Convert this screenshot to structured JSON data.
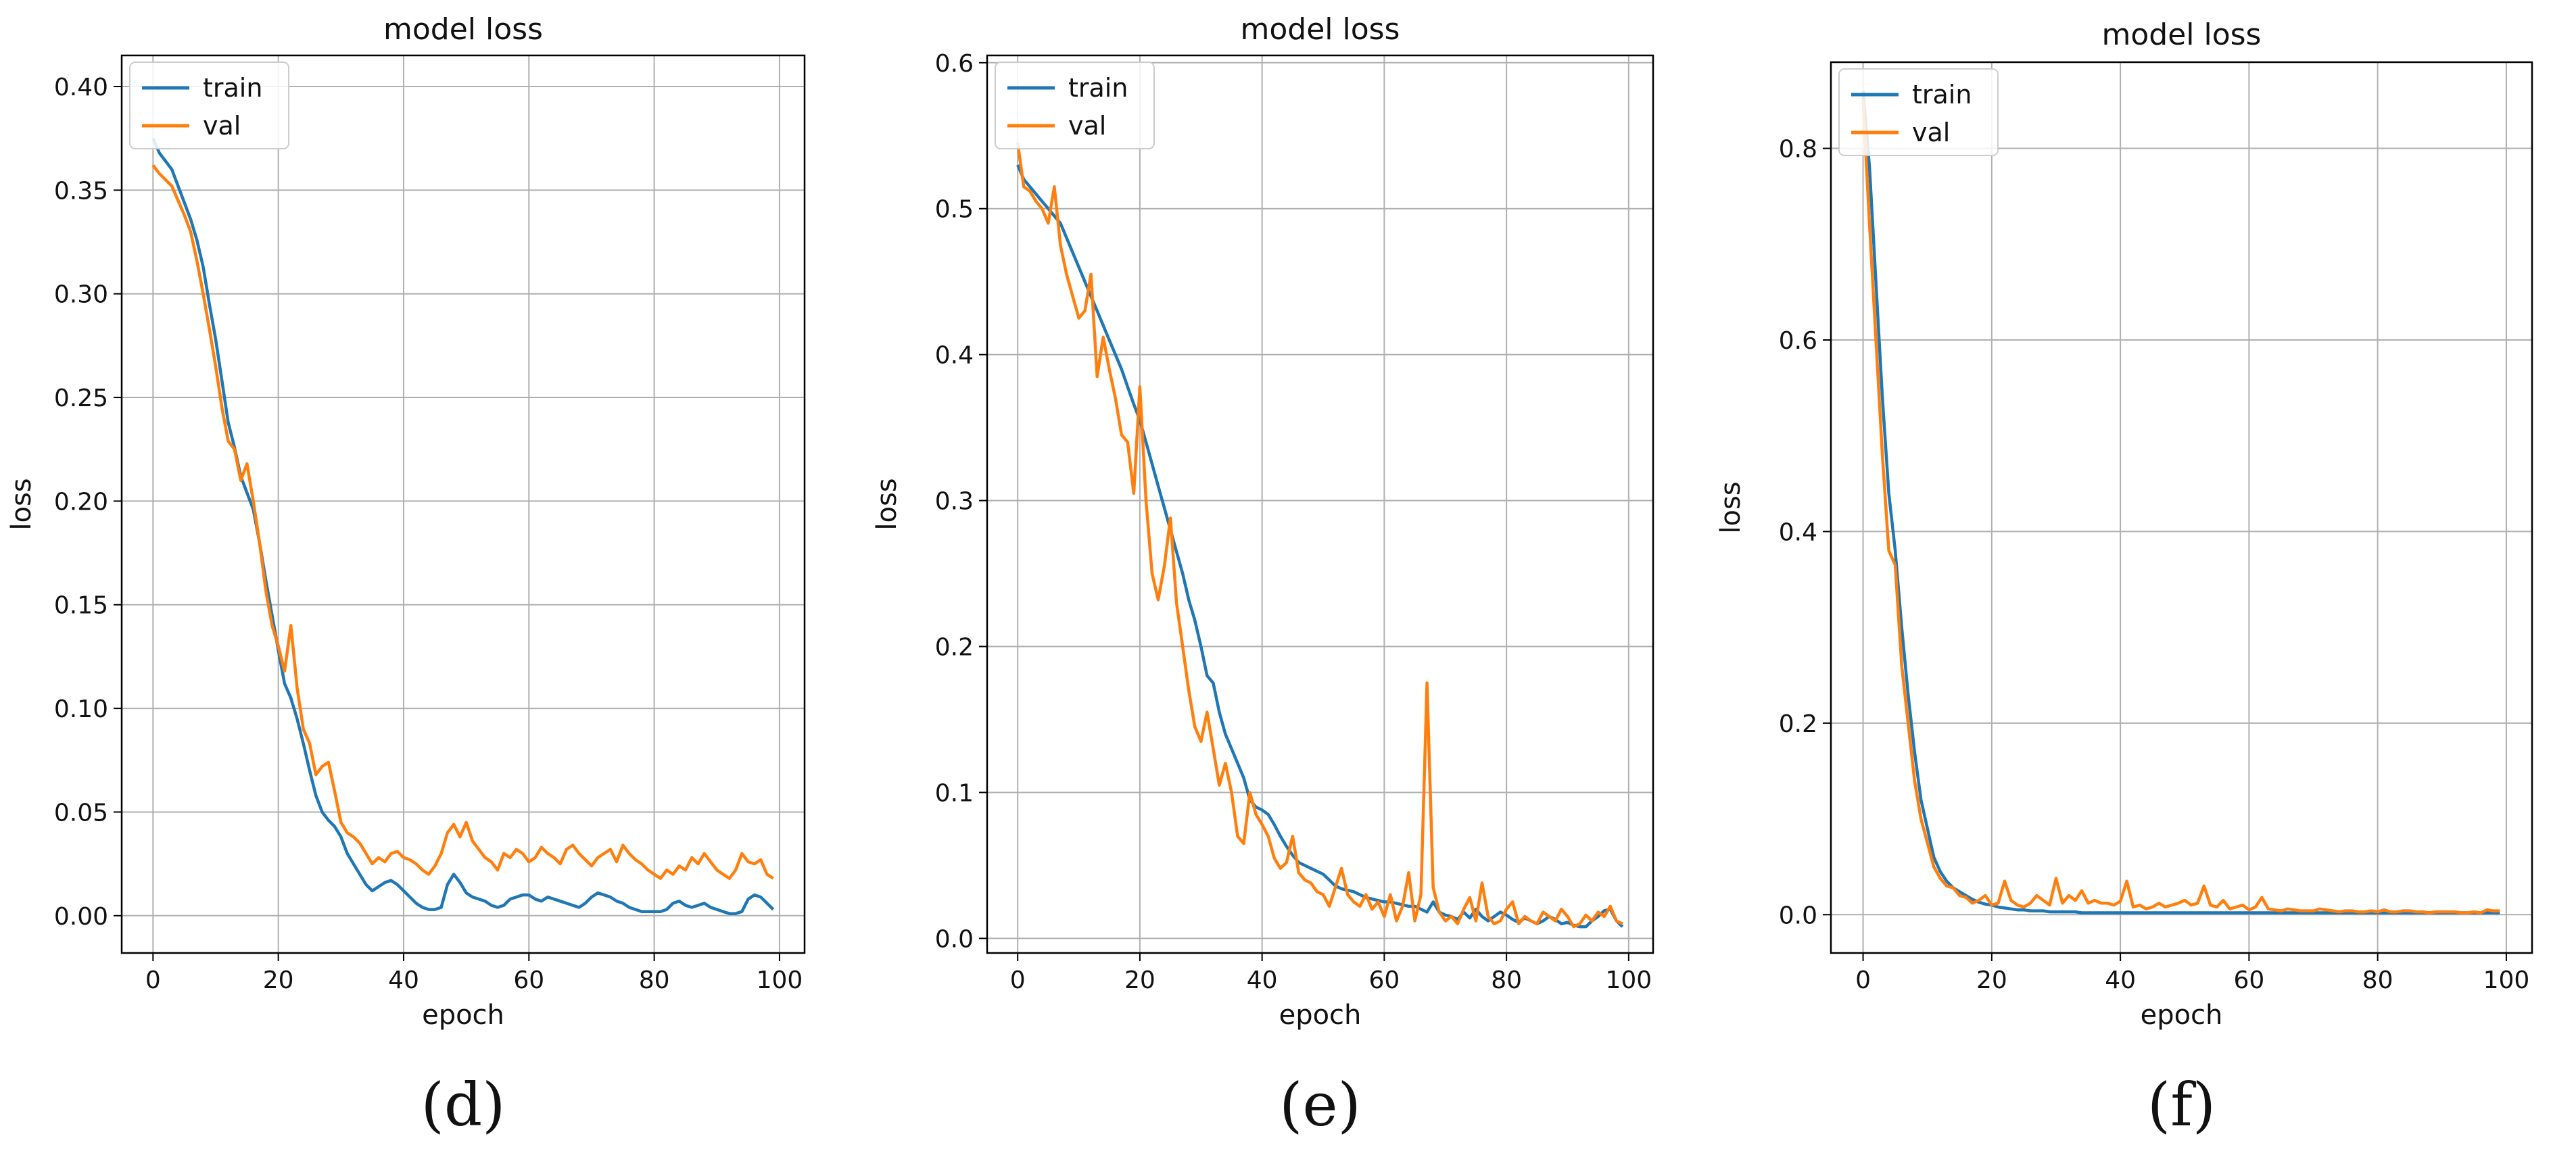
{
  "colors": {
    "train": "#1f77b4",
    "val": "#ff7f0e",
    "grid": "#b0b0b0",
    "axis": "#000000"
  },
  "chart_data": [
    {
      "type": "line",
      "title": "model loss",
      "xlabel": "epoch",
      "ylabel": "loss",
      "caption": "(d)",
      "xlim": [
        -5,
        104
      ],
      "ylim": [
        -0.018,
        0.415
      ],
      "xticks": [
        0,
        20,
        40,
        60,
        80,
        100
      ],
      "xtick_labels": [
        "0",
        "20",
        "40",
        "60",
        "80",
        "100"
      ],
      "yticks": [
        0.0,
        0.05,
        0.1,
        0.15,
        0.2,
        0.25,
        0.3,
        0.35,
        0.4
      ],
      "ytick_labels": [
        "0.00",
        "0.05",
        "0.10",
        "0.15",
        "0.20",
        "0.25",
        "0.30",
        "0.35",
        "0.40"
      ],
      "grid": true,
      "legend": "upper-left",
      "series": [
        {
          "name": "train",
          "x_start": 0,
          "x_step": 1,
          "values": [
            0.375,
            0.368,
            0.364,
            0.36,
            0.352,
            0.344,
            0.336,
            0.326,
            0.313,
            0.295,
            0.278,
            0.258,
            0.238,
            0.226,
            0.212,
            0.204,
            0.196,
            0.18,
            0.162,
            0.145,
            0.128,
            0.112,
            0.105,
            0.095,
            0.083,
            0.07,
            0.058,
            0.05,
            0.046,
            0.043,
            0.038,
            0.03,
            0.025,
            0.02,
            0.015,
            0.012,
            0.014,
            0.016,
            0.017,
            0.015,
            0.012,
            0.009,
            0.006,
            0.004,
            0.003,
            0.003,
            0.004,
            0.015,
            0.02,
            0.016,
            0.011,
            0.009,
            0.008,
            0.007,
            0.005,
            0.004,
            0.005,
            0.008,
            0.009,
            0.01,
            0.01,
            0.008,
            0.007,
            0.009,
            0.008,
            0.007,
            0.006,
            0.005,
            0.004,
            0.006,
            0.009,
            0.011,
            0.01,
            0.009,
            0.007,
            0.006,
            0.004,
            0.003,
            0.002,
            0.002,
            0.002,
            0.002,
            0.003,
            0.006,
            0.007,
            0.005,
            0.004,
            0.005,
            0.006,
            0.004,
            0.003,
            0.002,
            0.001,
            0.001,
            0.002,
            0.008,
            0.01,
            0.009,
            0.006,
            0.003
          ]
        },
        {
          "name": "val",
          "x_start": 0,
          "x_step": 1,
          "values": [
            0.362,
            0.358,
            0.355,
            0.352,
            0.345,
            0.338,
            0.33,
            0.316,
            0.3,
            0.283,
            0.265,
            0.245,
            0.229,
            0.225,
            0.21,
            0.218,
            0.2,
            0.18,
            0.157,
            0.14,
            0.13,
            0.118,
            0.14,
            0.11,
            0.09,
            0.083,
            0.068,
            0.072,
            0.074,
            0.06,
            0.045,
            0.04,
            0.038,
            0.035,
            0.03,
            0.025,
            0.028,
            0.026,
            0.03,
            0.031,
            0.028,
            0.027,
            0.025,
            0.022,
            0.02,
            0.024,
            0.03,
            0.04,
            0.044,
            0.038,
            0.045,
            0.036,
            0.032,
            0.028,
            0.026,
            0.022,
            0.03,
            0.028,
            0.032,
            0.03,
            0.026,
            0.028,
            0.033,
            0.03,
            0.028,
            0.025,
            0.032,
            0.034,
            0.03,
            0.027,
            0.024,
            0.028,
            0.03,
            0.032,
            0.026,
            0.034,
            0.03,
            0.027,
            0.025,
            0.022,
            0.02,
            0.018,
            0.022,
            0.02,
            0.024,
            0.022,
            0.028,
            0.025,
            0.03,
            0.026,
            0.022,
            0.02,
            0.018,
            0.022,
            0.03,
            0.026,
            0.025,
            0.027,
            0.02,
            0.018
          ]
        }
      ]
    },
    {
      "type": "line",
      "title": "model loss",
      "xlabel": "epoch",
      "ylabel": "loss",
      "caption": "(e)",
      "xlim": [
        -5,
        104
      ],
      "ylim": [
        -0.01,
        0.605
      ],
      "xticks": [
        0,
        20,
        40,
        60,
        80,
        100
      ],
      "xtick_labels": [
        "0",
        "20",
        "40",
        "60",
        "80",
        "100"
      ],
      "yticks": [
        0.0,
        0.1,
        0.2,
        0.3,
        0.4,
        0.5,
        0.6
      ],
      "ytick_labels": [
        "0.0",
        "0.1",
        "0.2",
        "0.3",
        "0.4",
        "0.5",
        "0.6"
      ],
      "grid": true,
      "legend": "upper-left",
      "series": [
        {
          "name": "train",
          "x_start": 0,
          "x_step": 1,
          "values": [
            0.53,
            0.52,
            0.515,
            0.51,
            0.505,
            0.5,
            0.495,
            0.49,
            0.48,
            0.47,
            0.46,
            0.45,
            0.44,
            0.43,
            0.42,
            0.41,
            0.4,
            0.39,
            0.378,
            0.366,
            0.355,
            0.34,
            0.325,
            0.31,
            0.295,
            0.28,
            0.265,
            0.25,
            0.232,
            0.218,
            0.2,
            0.18,
            0.175,
            0.155,
            0.14,
            0.13,
            0.12,
            0.11,
            0.095,
            0.09,
            0.088,
            0.085,
            0.078,
            0.07,
            0.063,
            0.057,
            0.052,
            0.05,
            0.048,
            0.046,
            0.044,
            0.04,
            0.036,
            0.034,
            0.033,
            0.032,
            0.03,
            0.028,
            0.027,
            0.026,
            0.025,
            0.025,
            0.024,
            0.023,
            0.022,
            0.022,
            0.02,
            0.018,
            0.025,
            0.018,
            0.016,
            0.015,
            0.013,
            0.018,
            0.014,
            0.02,
            0.015,
            0.012,
            0.015,
            0.018,
            0.016,
            0.013,
            0.011,
            0.014,
            0.012,
            0.01,
            0.012,
            0.015,
            0.013,
            0.01,
            0.011,
            0.009,
            0.008,
            0.008,
            0.012,
            0.015,
            0.019,
            0.02,
            0.012,
            0.008
          ]
        },
        {
          "name": "val",
          "x_start": 0,
          "x_step": 1,
          "values": [
            0.545,
            0.515,
            0.512,
            0.505,
            0.5,
            0.49,
            0.515,
            0.475,
            0.455,
            0.44,
            0.425,
            0.43,
            0.455,
            0.385,
            0.412,
            0.39,
            0.37,
            0.345,
            0.34,
            0.305,
            0.378,
            0.3,
            0.25,
            0.232,
            0.255,
            0.288,
            0.23,
            0.2,
            0.17,
            0.145,
            0.135,
            0.155,
            0.13,
            0.105,
            0.12,
            0.1,
            0.07,
            0.065,
            0.1,
            0.085,
            0.078,
            0.07,
            0.055,
            0.048,
            0.052,
            0.07,
            0.045,
            0.04,
            0.038,
            0.032,
            0.03,
            0.022,
            0.035,
            0.048,
            0.03,
            0.025,
            0.022,
            0.03,
            0.02,
            0.025,
            0.015,
            0.03,
            0.012,
            0.022,
            0.045,
            0.012,
            0.03,
            0.175,
            0.035,
            0.018,
            0.012,
            0.015,
            0.01,
            0.02,
            0.028,
            0.012,
            0.038,
            0.015,
            0.01,
            0.012,
            0.02,
            0.025,
            0.01,
            0.015,
            0.012,
            0.01,
            0.018,
            0.015,
            0.012,
            0.02,
            0.015,
            0.008,
            0.01,
            0.016,
            0.012,
            0.018,
            0.015,
            0.022,
            0.012,
            0.01
          ]
        }
      ]
    },
    {
      "type": "line",
      "title": "model loss",
      "xlabel": "epoch",
      "ylabel": "loss",
      "caption": "(f)",
      "xlim": [
        -5,
        104
      ],
      "ylim": [
        -0.04,
        0.89
      ],
      "xticks": [
        0,
        20,
        40,
        60,
        80,
        100
      ],
      "xtick_labels": [
        "0",
        "20",
        "40",
        "60",
        "80",
        "100"
      ],
      "yticks": [
        0.0,
        0.2,
        0.4,
        0.6,
        0.8
      ],
      "ytick_labels": [
        "0.0",
        "0.2",
        "0.4",
        "0.6",
        "0.8"
      ],
      "grid": true,
      "legend": "upper-left",
      "series": [
        {
          "name": "train",
          "x_start": 0,
          "x_step": 1,
          "values": [
            0.86,
            0.78,
            0.66,
            0.54,
            0.44,
            0.38,
            0.3,
            0.23,
            0.17,
            0.12,
            0.09,
            0.06,
            0.045,
            0.035,
            0.028,
            0.024,
            0.02,
            0.016,
            0.013,
            0.011,
            0.01,
            0.008,
            0.007,
            0.006,
            0.005,
            0.005,
            0.004,
            0.004,
            0.004,
            0.003,
            0.003,
            0.003,
            0.003,
            0.003,
            0.002,
            0.002,
            0.002,
            0.002,
            0.002,
            0.002,
            0.002,
            0.002,
            0.002,
            0.002,
            0.002,
            0.002,
            0.002,
            0.002,
            0.002,
            0.002,
            0.002,
            0.002,
            0.002,
            0.002,
            0.002,
            0.002,
            0.002,
            0.002,
            0.002,
            0.002,
            0.002,
            0.002,
            0.002,
            0.002,
            0.002,
            0.002,
            0.002,
            0.002,
            0.002,
            0.002,
            0.002,
            0.002,
            0.002,
            0.002,
            0.002,
            0.002,
            0.002,
            0.002,
            0.002,
            0.002,
            0.002,
            0.002,
            0.002,
            0.002,
            0.002,
            0.002,
            0.002,
            0.002,
            0.002,
            0.002,
            0.002,
            0.002,
            0.002,
            0.002,
            0.002,
            0.002,
            0.002,
            0.002,
            0.002,
            0.002
          ]
        },
        {
          "name": "val",
          "x_start": 0,
          "x_step": 1,
          "values": [
            0.85,
            0.72,
            0.6,
            0.48,
            0.38,
            0.365,
            0.26,
            0.2,
            0.14,
            0.1,
            0.075,
            0.05,
            0.038,
            0.03,
            0.028,
            0.02,
            0.018,
            0.012,
            0.015,
            0.02,
            0.01,
            0.012,
            0.035,
            0.015,
            0.01,
            0.008,
            0.012,
            0.02,
            0.015,
            0.01,
            0.038,
            0.012,
            0.02,
            0.015,
            0.025,
            0.012,
            0.015,
            0.012,
            0.012,
            0.01,
            0.014,
            0.035,
            0.008,
            0.01,
            0.006,
            0.008,
            0.012,
            0.008,
            0.01,
            0.012,
            0.015,
            0.01,
            0.012,
            0.03,
            0.01,
            0.008,
            0.015,
            0.006,
            0.008,
            0.01,
            0.005,
            0.008,
            0.018,
            0.006,
            0.005,
            0.004,
            0.006,
            0.005,
            0.004,
            0.004,
            0.004,
            0.006,
            0.005,
            0.004,
            0.003,
            0.004,
            0.004,
            0.003,
            0.003,
            0.004,
            0.003,
            0.005,
            0.003,
            0.003,
            0.004,
            0.004,
            0.003,
            0.003,
            0.002,
            0.003,
            0.003,
            0.003,
            0.003,
            0.002,
            0.002,
            0.003,
            0.002,
            0.005,
            0.004,
            0.004
          ]
        }
      ]
    }
  ]
}
